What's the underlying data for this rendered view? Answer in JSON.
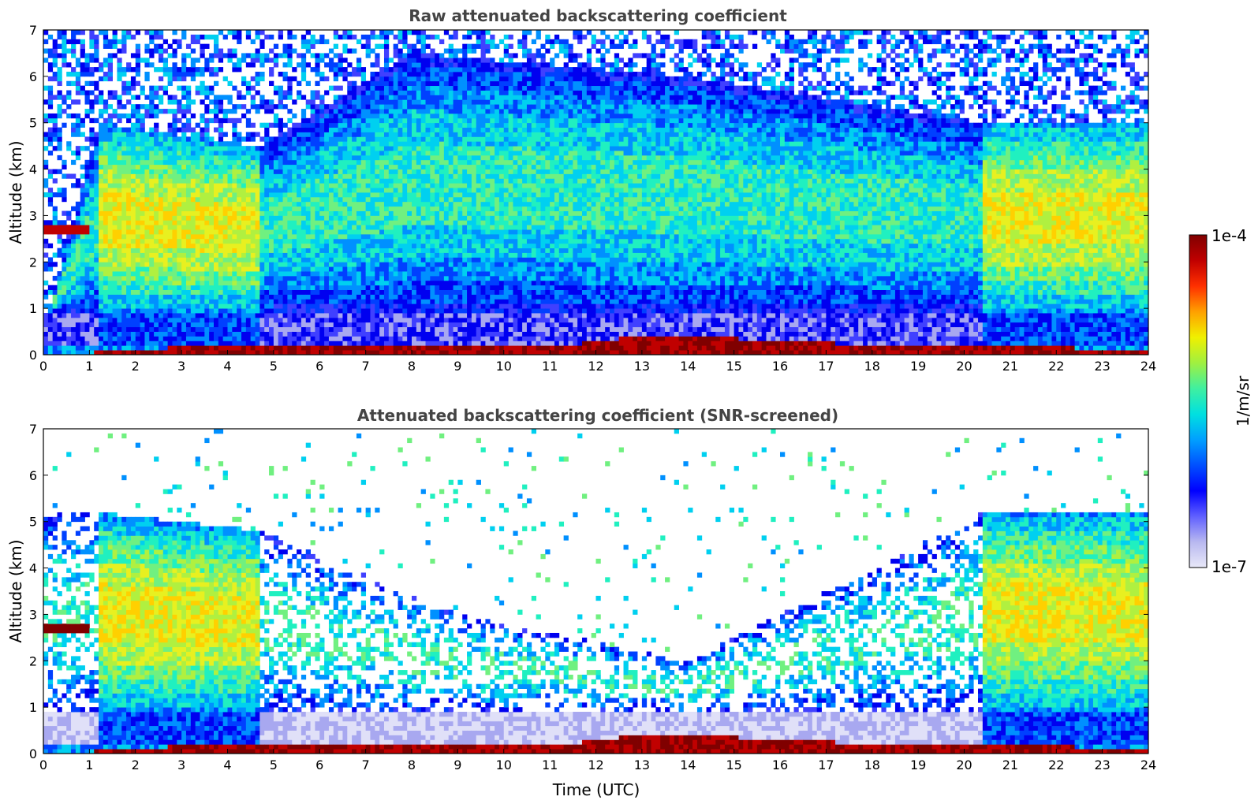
{
  "chart_data": [
    {
      "type": "heatmap",
      "title": "Raw attenuated backscattering coefficient",
      "ylabel": "Altitude (km)",
      "xlabel": "",
      "xlim": [
        0,
        24
      ],
      "ylim": [
        0,
        7
      ],
      "x_ticks": [
        "0",
        "1",
        "2",
        "3",
        "4",
        "5",
        "6",
        "7",
        "8",
        "9",
        "10",
        "11",
        "12",
        "13",
        "14",
        "15",
        "16",
        "17",
        "18",
        "19",
        "20",
        "21",
        "22",
        "23",
        "24"
      ],
      "y_ticks": [
        "0",
        "1",
        "2",
        "3",
        "4",
        "5",
        "6",
        "7"
      ],
      "features": {
        "aerosol_layer_top_km": [
          [
            0,
            0.5
          ],
          [
            1.2,
            5.0
          ],
          [
            4.7,
            4.5
          ],
          [
            8,
            6.5
          ],
          [
            14,
            6.0
          ],
          [
            20.4,
            5.0
          ],
          [
            24,
            5.0
          ]
        ],
        "cloud_layer": {
          "time_start": 0,
          "time_end": 1.0,
          "altitude_km": 2.72
        },
        "surface_layer_km": [
          [
            1.2,
            0.05
          ],
          [
            5,
            0.1
          ],
          [
            9,
            0.15
          ],
          [
            11,
            0.1
          ],
          [
            12,
            0.2
          ],
          [
            13,
            0.35
          ],
          [
            14.5,
            0.3
          ],
          [
            15.5,
            0.25
          ],
          [
            16,
            0.2
          ],
          [
            18,
            0.15
          ],
          [
            20,
            0.1
          ],
          [
            24,
            0.05
          ]
        ],
        "low_signal_gap": [
          [
            4.8,
            0.3,
            1.0
          ],
          [
            16,
            0.2,
            1.0
          ],
          [
            20,
            0.2,
            0.8
          ]
        ]
      }
    },
    {
      "type": "heatmap",
      "title": "Attenuated backscattering coefficient (SNR-screened)",
      "ylabel": "Altitude (km)",
      "xlabel": "Time (UTC)",
      "xlim": [
        0,
        24
      ],
      "ylim": [
        0,
        7
      ],
      "x_ticks": [
        "0",
        "1",
        "2",
        "3",
        "4",
        "5",
        "6",
        "7",
        "8",
        "9",
        "10",
        "11",
        "12",
        "13",
        "14",
        "15",
        "16",
        "17",
        "18",
        "19",
        "20",
        "21",
        "22",
        "23",
        "24"
      ],
      "y_ticks": [
        "0",
        "1",
        "2",
        "3",
        "4",
        "5",
        "6",
        "7"
      ],
      "features": {
        "aerosol_layer_top_km": [
          [
            1.2,
            5.2
          ],
          [
            4.7,
            4.8
          ],
          [
            9,
            3.0
          ],
          [
            14,
            2.0
          ],
          [
            20.4,
            5.2
          ],
          [
            24,
            5.2
          ]
        ],
        "cloud_layer": {
          "time_start": 0,
          "time_end": 1.0,
          "altitude_km": 2.72
        }
      }
    }
  ],
  "colorbar": {
    "label": "1/m/sr",
    "max_label": "1e-4",
    "min_label": "1e-7",
    "scale": "log",
    "colors": [
      "#e8e8f8",
      "#b8b8f0",
      "#6060ff",
      "#0000ff",
      "#0050ff",
      "#00a0ff",
      "#00e0e0",
      "#40f0a0",
      "#a0f040",
      "#f0f000",
      "#ffa000",
      "#ff3000",
      "#c00000",
      "#800000"
    ]
  }
}
